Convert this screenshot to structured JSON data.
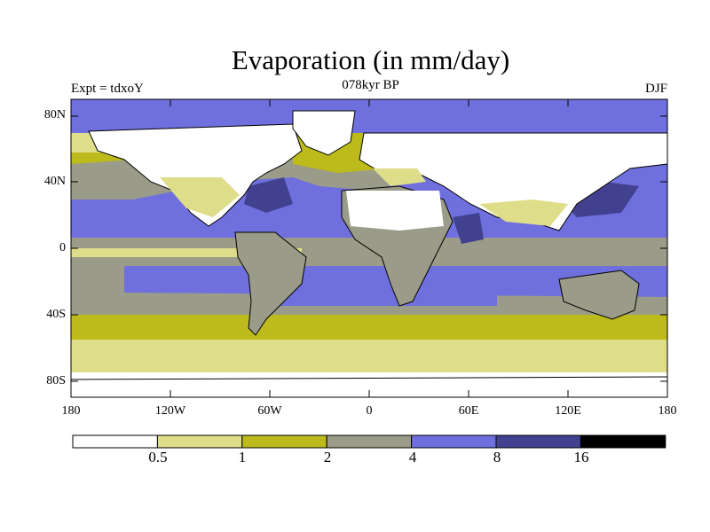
{
  "header": {
    "title": "Evaporation (in mm/day)",
    "left_label": "Expt = tdxoY",
    "center_label": "078kyr BP",
    "right_label": "DJF"
  },
  "map": {
    "lat_ticks": [
      "80N",
      "40N",
      "0",
      "40S",
      "80S"
    ],
    "lon_ticks": [
      "180",
      "120W",
      "60W",
      "0",
      "60E",
      "120E",
      "180"
    ]
  },
  "colorbar": {
    "levels": [
      "0.5",
      "1",
      "2",
      "4",
      "8",
      "16"
    ],
    "colors": [
      "#ffffff",
      "#dedd89",
      "#bdbb1c",
      "#9b9b89",
      "#6f6fde",
      "#41418f",
      "#000000"
    ]
  }
}
